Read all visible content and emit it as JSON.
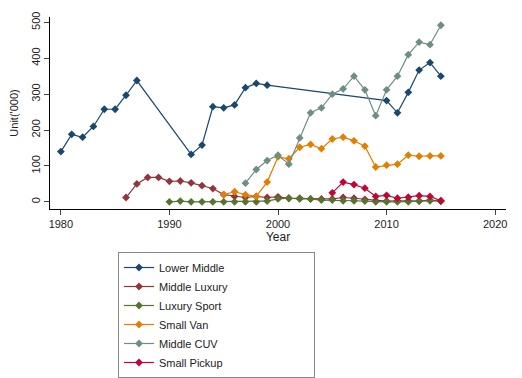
{
  "chart_data": {
    "type": "line",
    "x_label": "Year",
    "y_label": "Unit('000)",
    "xlim": [
      1979,
      2021
    ],
    "xticks": [
      1980,
      1990,
      2000,
      2010,
      2020
    ],
    "ylim": [
      -20,
      515
    ],
    "yticks": [
      0,
      100,
      200,
      300,
      400,
      500
    ],
    "grid": false,
    "legend": "bottom",
    "marker": "diamond",
    "series": [
      {
        "name": "Lower Middle",
        "color": "#1a476f",
        "x": [
          1980,
          1981,
          1982,
          1983,
          1984,
          1985,
          1986,
          1987,
          1992,
          1993,
          1994,
          1995,
          1996,
          1997,
          1998,
          1999,
          2010,
          2011,
          2012,
          2013,
          2014,
          2015
        ],
        "values": [
          140,
          188,
          180,
          210,
          258,
          258,
          297,
          338,
          132,
          158,
          265,
          262,
          270,
          318,
          330,
          325,
          282,
          248,
          305,
          367,
          388,
          350
        ]
      },
      {
        "name": "Middle Luxury",
        "color": "#90353b",
        "x": [
          1986,
          1987,
          1988,
          1989,
          1990,
          1991,
          1992,
          1993,
          1994,
          1995,
          1996,
          1997,
          1998,
          1999,
          2000,
          2001,
          2002,
          2003,
          2004,
          2005,
          2006,
          2007,
          2008,
          2009,
          2010,
          2011,
          2012,
          2013,
          2014,
          2015
        ],
        "values": [
          12,
          50,
          68,
          68,
          57,
          58,
          53,
          45,
          37,
          20,
          15,
          12,
          15,
          12,
          14,
          10,
          10,
          8,
          8,
          8,
          12,
          10,
          7,
          3,
          2,
          3,
          3,
          2,
          5,
          2
        ]
      },
      {
        "name": "Luxury Sport",
        "color": "#55752f",
        "x": [
          1990,
          1991,
          1992,
          1993,
          1994,
          1995,
          1996,
          1997,
          1998,
          1999,
          2000,
          2001,
          2002,
          2003,
          2004,
          2005,
          2006,
          2007,
          2008,
          2009,
          2010,
          2011,
          2012,
          2013,
          2014,
          2015
        ],
        "values": [
          0,
          2,
          0,
          0,
          0,
          0,
          0,
          0,
          0,
          2,
          8,
          10,
          8,
          8,
          5,
          5,
          3,
          3,
          2,
          0,
          0,
          0,
          0,
          2,
          3,
          2
        ]
      },
      {
        "name": "Small Van",
        "color": "#e37e00",
        "x": [
          1995,
          1996,
          1997,
          1998,
          1999,
          2000,
          2001,
          2002,
          2003,
          2004,
          2005,
          2006,
          2007,
          2008,
          2009,
          2010,
          2011,
          2012,
          2013,
          2014,
          2015
        ],
        "values": [
          20,
          28,
          20,
          15,
          55,
          125,
          120,
          152,
          160,
          148,
          175,
          180,
          170,
          155,
          97,
          102,
          105,
          130,
          127,
          128,
          128
        ]
      },
      {
        "name": "Middle CUV",
        "color": "#6e8e84",
        "x": [
          1997,
          1998,
          1999,
          2000,
          2001,
          2002,
          2003,
          2004,
          2005,
          2006,
          2007,
          2008,
          2009,
          2010,
          2011,
          2012,
          2013,
          2014,
          2015
        ],
        "values": [
          52,
          90,
          115,
          130,
          105,
          178,
          248,
          262,
          300,
          315,
          350,
          312,
          240,
          312,
          350,
          410,
          445,
          438,
          492
        ]
      },
      {
        "name": "Small Pickup",
        "color": "#c10534",
        "x": [
          2005,
          2006,
          2007,
          2008,
          2009,
          2010,
          2011,
          2012,
          2013,
          2014,
          2015
        ],
        "values": [
          25,
          55,
          48,
          38,
          15,
          18,
          10,
          13,
          17,
          15,
          3
        ]
      }
    ]
  }
}
